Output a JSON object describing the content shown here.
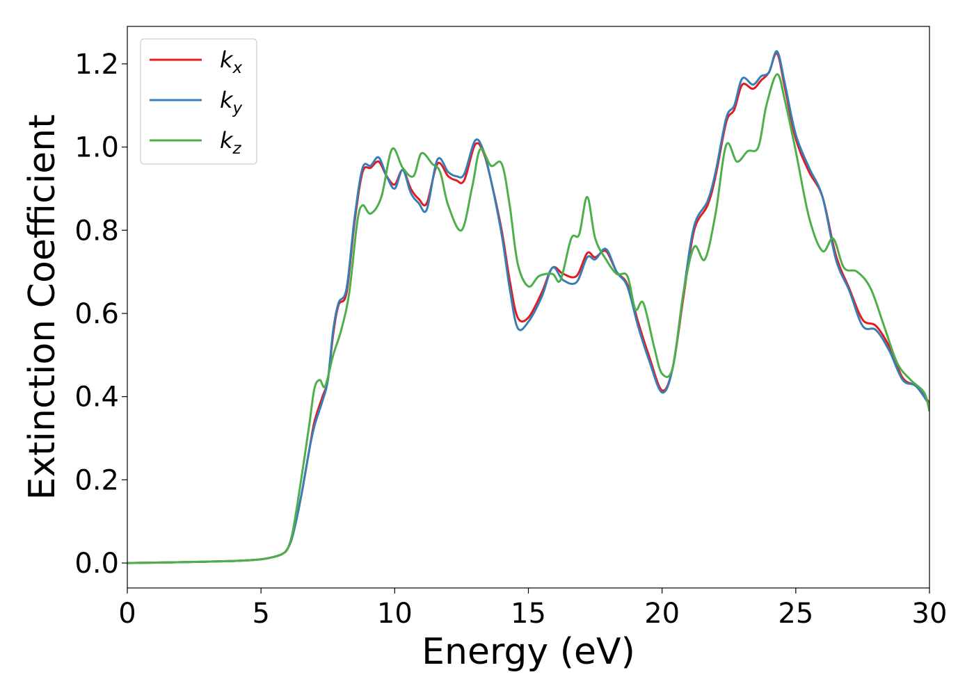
{
  "chart_data": {
    "type": "line",
    "title": "",
    "xlabel": "Energy (eV)",
    "ylabel": "Extinction Coefficient",
    "xlim": [
      0,
      30
    ],
    "ylim": [
      -0.06,
      1.29
    ],
    "xticks": [
      0,
      5,
      10,
      15,
      20,
      25,
      30
    ],
    "yticks": [
      0.0,
      0.2,
      0.4,
      0.6,
      0.8,
      1.0,
      1.2
    ],
    "xtick_labels": [
      "0",
      "5",
      "10",
      "15",
      "20",
      "25",
      "30"
    ],
    "ytick_labels": [
      "0.0",
      "0.2",
      "0.4",
      "0.6",
      "0.8",
      "1.0",
      "1.2"
    ],
    "grid": false,
    "legend": {
      "position": "top-left"
    },
    "series": [
      {
        "name": "k",
        "subscript": "x",
        "color": "#e41a1c",
        "points": [
          [
            0,
            0
          ],
          [
            2,
            0.002
          ],
          [
            4,
            0.005
          ],
          [
            5,
            0.009
          ],
          [
            5.5,
            0.015
          ],
          [
            5.8,
            0.022
          ],
          [
            6.0,
            0.035
          ],
          [
            6.2,
            0.07
          ],
          [
            6.5,
            0.16
          ],
          [
            6.8,
            0.27
          ],
          [
            7.0,
            0.34
          ],
          [
            7.3,
            0.4
          ],
          [
            7.5,
            0.44
          ],
          [
            7.7,
            0.55
          ],
          [
            7.9,
            0.62
          ],
          [
            8.2,
            0.65
          ],
          [
            8.5,
            0.82
          ],
          [
            8.8,
            0.94
          ],
          [
            9.1,
            0.95
          ],
          [
            9.4,
            0.965
          ],
          [
            9.7,
            0.93
          ],
          [
            10.0,
            0.91
          ],
          [
            10.3,
            0.945
          ],
          [
            10.6,
            0.9
          ],
          [
            10.9,
            0.875
          ],
          [
            11.2,
            0.865
          ],
          [
            11.6,
            0.96
          ],
          [
            12.0,
            0.93
          ],
          [
            12.3,
            0.92
          ],
          [
            12.6,
            0.92
          ],
          [
            13.0,
            1.005
          ],
          [
            13.3,
            0.99
          ],
          [
            13.6,
            0.92
          ],
          [
            14.0,
            0.8
          ],
          [
            14.3,
            0.68
          ],
          [
            14.6,
            0.59
          ],
          [
            15.0,
            0.59
          ],
          [
            15.5,
            0.65
          ],
          [
            15.9,
            0.71
          ],
          [
            16.3,
            0.695
          ],
          [
            16.8,
            0.69
          ],
          [
            17.2,
            0.745
          ],
          [
            17.5,
            0.735
          ],
          [
            17.9,
            0.75
          ],
          [
            18.3,
            0.7
          ],
          [
            18.7,
            0.67
          ],
          [
            19.1,
            0.58
          ],
          [
            19.5,
            0.5
          ],
          [
            20.0,
            0.415
          ],
          [
            20.4,
            0.47
          ],
          [
            20.8,
            0.64
          ],
          [
            21.2,
            0.8
          ],
          [
            21.7,
            0.86
          ],
          [
            22.0,
            0.93
          ],
          [
            22.4,
            1.06
          ],
          [
            22.7,
            1.09
          ],
          [
            23.0,
            1.15
          ],
          [
            23.4,
            1.14
          ],
          [
            23.7,
            1.16
          ],
          [
            24.0,
            1.18
          ],
          [
            24.3,
            1.225
          ],
          [
            24.6,
            1.14
          ],
          [
            25.0,
            1.02
          ],
          [
            25.5,
            0.94
          ],
          [
            26.0,
            0.88
          ],
          [
            26.5,
            0.74
          ],
          [
            27.0,
            0.66
          ],
          [
            27.5,
            0.585
          ],
          [
            28.0,
            0.57
          ],
          [
            28.5,
            0.52
          ],
          [
            29.0,
            0.445
          ],
          [
            29.5,
            0.425
          ],
          [
            30.0,
            0.385
          ]
        ]
      },
      {
        "name": "k",
        "subscript": "y",
        "color": "#377eb8",
        "points": [
          [
            0,
            0
          ],
          [
            2,
            0.002
          ],
          [
            4,
            0.005
          ],
          [
            5,
            0.009
          ],
          [
            5.5,
            0.015
          ],
          [
            5.8,
            0.022
          ],
          [
            6.0,
            0.035
          ],
          [
            6.2,
            0.07
          ],
          [
            6.5,
            0.16
          ],
          [
            6.8,
            0.27
          ],
          [
            7.0,
            0.33
          ],
          [
            7.3,
            0.39
          ],
          [
            7.5,
            0.44
          ],
          [
            7.7,
            0.56
          ],
          [
            7.9,
            0.625
          ],
          [
            8.2,
            0.66
          ],
          [
            8.5,
            0.83
          ],
          [
            8.8,
            0.95
          ],
          [
            9.1,
            0.955
          ],
          [
            9.4,
            0.975
          ],
          [
            9.7,
            0.93
          ],
          [
            10.0,
            0.9
          ],
          [
            10.3,
            0.945
          ],
          [
            10.6,
            0.89
          ],
          [
            10.9,
            0.865
          ],
          [
            11.2,
            0.85
          ],
          [
            11.6,
            0.97
          ],
          [
            12.0,
            0.94
          ],
          [
            12.3,
            0.93
          ],
          [
            12.6,
            0.935
          ],
          [
            13.0,
            1.015
          ],
          [
            13.3,
            0.995
          ],
          [
            13.6,
            0.92
          ],
          [
            14.0,
            0.79
          ],
          [
            14.3,
            0.66
          ],
          [
            14.6,
            0.565
          ],
          [
            15.0,
            0.58
          ],
          [
            15.5,
            0.64
          ],
          [
            15.9,
            0.71
          ],
          [
            16.3,
            0.68
          ],
          [
            16.8,
            0.675
          ],
          [
            17.2,
            0.735
          ],
          [
            17.5,
            0.73
          ],
          [
            17.9,
            0.755
          ],
          [
            18.3,
            0.7
          ],
          [
            18.7,
            0.665
          ],
          [
            19.1,
            0.57
          ],
          [
            19.5,
            0.49
          ],
          [
            20.0,
            0.41
          ],
          [
            20.4,
            0.47
          ],
          [
            20.8,
            0.65
          ],
          [
            21.2,
            0.81
          ],
          [
            21.7,
            0.87
          ],
          [
            22.0,
            0.94
          ],
          [
            22.4,
            1.07
          ],
          [
            22.7,
            1.1
          ],
          [
            23.0,
            1.165
          ],
          [
            23.4,
            1.15
          ],
          [
            23.7,
            1.17
          ],
          [
            24.0,
            1.18
          ],
          [
            24.3,
            1.23
          ],
          [
            24.6,
            1.15
          ],
          [
            25.0,
            1.03
          ],
          [
            25.5,
            0.95
          ],
          [
            26.0,
            0.88
          ],
          [
            26.5,
            0.73
          ],
          [
            27.0,
            0.655
          ],
          [
            27.5,
            0.57
          ],
          [
            28.0,
            0.56
          ],
          [
            28.5,
            0.51
          ],
          [
            29.0,
            0.44
          ],
          [
            29.5,
            0.425
          ],
          [
            30.0,
            0.38
          ]
        ]
      },
      {
        "name": "k",
        "subscript": "z",
        "color": "#4daf4a",
        "points": [
          [
            0,
            0
          ],
          [
            2,
            0.002
          ],
          [
            4,
            0.005
          ],
          [
            5,
            0.009
          ],
          [
            5.5,
            0.015
          ],
          [
            5.8,
            0.022
          ],
          [
            6.0,
            0.035
          ],
          [
            6.2,
            0.08
          ],
          [
            6.5,
            0.2
          ],
          [
            6.8,
            0.33
          ],
          [
            7.0,
            0.42
          ],
          [
            7.2,
            0.44
          ],
          [
            7.4,
            0.425
          ],
          [
            7.7,
            0.5
          ],
          [
            8.0,
            0.56
          ],
          [
            8.3,
            0.65
          ],
          [
            8.6,
            0.82
          ],
          [
            8.8,
            0.86
          ],
          [
            9.1,
            0.84
          ],
          [
            9.5,
            0.88
          ],
          [
            9.9,
            0.995
          ],
          [
            10.3,
            0.95
          ],
          [
            10.7,
            0.93
          ],
          [
            11.0,
            0.985
          ],
          [
            11.4,
            0.96
          ],
          [
            11.7,
            0.94
          ],
          [
            12.0,
            0.86
          ],
          [
            12.5,
            0.8
          ],
          [
            12.9,
            0.905
          ],
          [
            13.2,
            0.995
          ],
          [
            13.6,
            0.955
          ],
          [
            14.0,
            0.96
          ],
          [
            14.3,
            0.86
          ],
          [
            14.6,
            0.72
          ],
          [
            15.0,
            0.665
          ],
          [
            15.4,
            0.69
          ],
          [
            15.9,
            0.695
          ],
          [
            16.2,
            0.68
          ],
          [
            16.6,
            0.78
          ],
          [
            16.9,
            0.79
          ],
          [
            17.2,
            0.88
          ],
          [
            17.5,
            0.78
          ],
          [
            17.9,
            0.73
          ],
          [
            18.3,
            0.695
          ],
          [
            18.7,
            0.69
          ],
          [
            19.0,
            0.61
          ],
          [
            19.3,
            0.625
          ],
          [
            19.7,
            0.52
          ],
          [
            20.0,
            0.455
          ],
          [
            20.4,
            0.47
          ],
          [
            20.8,
            0.65
          ],
          [
            21.2,
            0.76
          ],
          [
            21.6,
            0.73
          ],
          [
            22.0,
            0.84
          ],
          [
            22.4,
            1.005
          ],
          [
            22.8,
            0.965
          ],
          [
            23.2,
            0.99
          ],
          [
            23.6,
            1.0
          ],
          [
            23.9,
            1.1
          ],
          [
            24.3,
            1.175
          ],
          [
            24.6,
            1.11
          ],
          [
            25.0,
            0.99
          ],
          [
            25.5,
            0.83
          ],
          [
            26.0,
            0.75
          ],
          [
            26.4,
            0.78
          ],
          [
            26.8,
            0.71
          ],
          [
            27.3,
            0.7
          ],
          [
            27.8,
            0.66
          ],
          [
            28.3,
            0.57
          ],
          [
            28.8,
            0.48
          ],
          [
            29.3,
            0.44
          ],
          [
            29.8,
            0.41
          ],
          [
            30.0,
            0.365
          ]
        ]
      }
    ]
  }
}
